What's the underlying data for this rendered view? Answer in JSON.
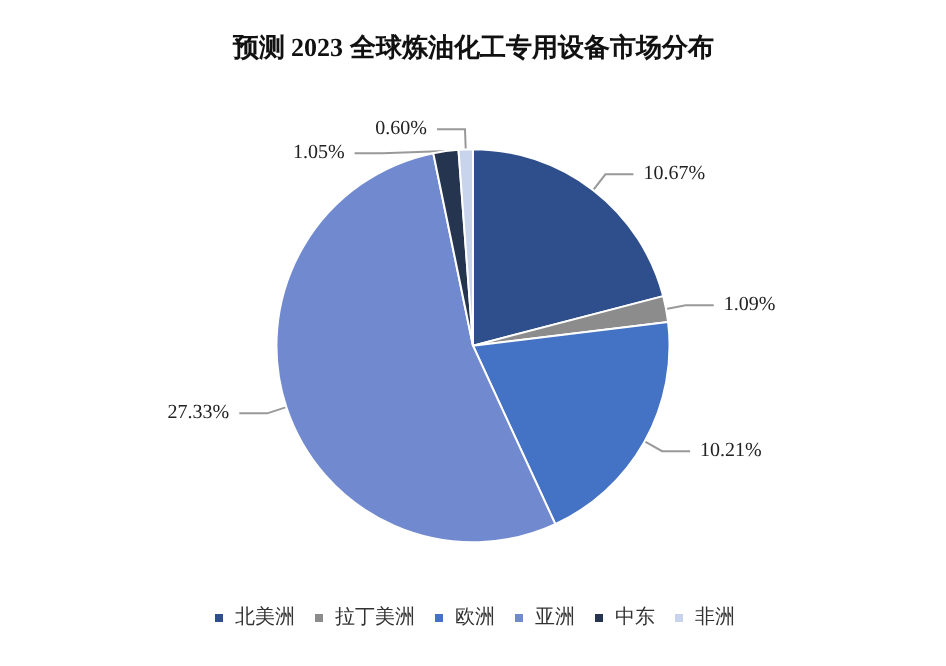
{
  "chart_data": {
    "type": "pie",
    "title": "预测 2023 全球炼油化工专用设备市场分布",
    "categories": [
      "北美洲",
      "拉丁美洲",
      "欧洲",
      "亚洲",
      "中东",
      "非洲"
    ],
    "values": [
      10.67,
      1.09,
      10.21,
      27.33,
      1.05,
      0.6
    ],
    "value_labels": [
      "10.67%",
      "1.09%",
      "10.21%",
      "27.33%",
      "1.05%",
      "0.60%"
    ],
    "colors": [
      "#2f4f8c",
      "#8c8c8c",
      "#4472c4",
      "#7189cf",
      "#26354f",
      "#c8d3ec"
    ],
    "legend": "bottom"
  }
}
